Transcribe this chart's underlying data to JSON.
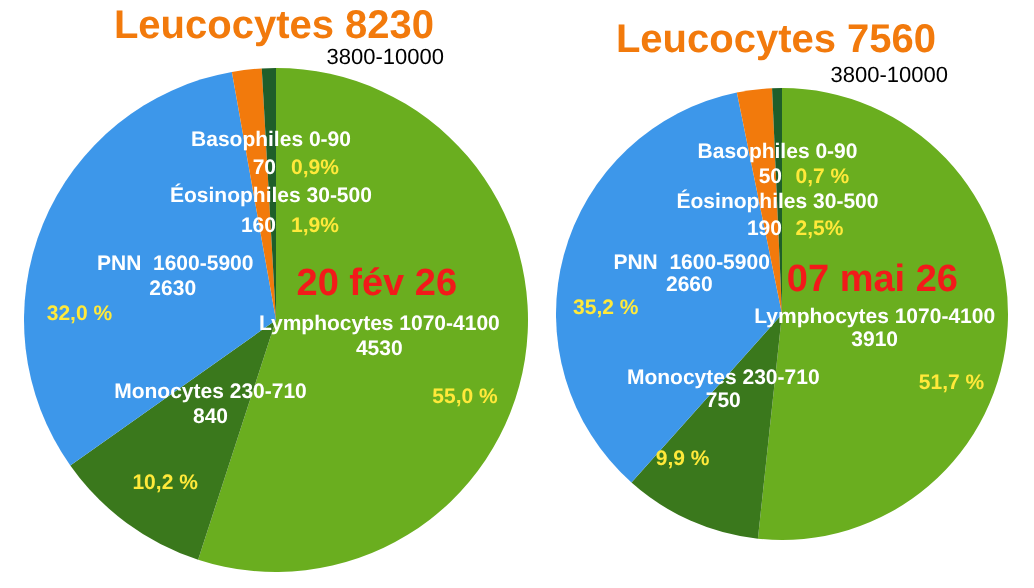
{
  "chart_data": [
    {
      "type": "pie",
      "title": "Leucocytes 8230",
      "subtitle": "3800-10000",
      "annotations": [
        "20 fév 26",
        "4530",
        "840",
        "2630",
        "160",
        "70"
      ],
      "categories": [
        "Lymphocytes 1070-4100",
        "Monocytes 230-710",
        "PNN  1600-5900",
        "Éosinophiles 30-500",
        "Basophiles 0-90"
      ],
      "values": [
        55.0,
        10.2,
        32.0,
        1.9,
        0.9
      ],
      "value_labels": [
        "55,0 %",
        "10,2 %",
        "32,0 %",
        "1,9%",
        "0,9%"
      ],
      "colors": [
        "#6aae1f",
        "#3a781c",
        "#3d97ea",
        "#f27a0c",
        "#1f5e2a"
      ]
    },
    {
      "type": "pie",
      "title": "Leucocytes 7560",
      "subtitle": "3800-10000",
      "annotations": [
        "07 mai 26",
        "3910",
        "750",
        "2660",
        "190",
        "50"
      ],
      "categories": [
        "Lymphocytes 1070-4100",
        "Monocytes 230-710",
        "PNN  1600-5900",
        "Éosinophiles 30-500",
        "Basophiles 0-90"
      ],
      "values": [
        51.7,
        9.9,
        35.2,
        2.5,
        0.7
      ],
      "value_labels": [
        "51,7 %",
        "9,9 %",
        "35,2 %",
        "2,5%",
        "0,7 %"
      ],
      "colors": [
        "#6aae1f",
        "#3a781c",
        "#3d97ea",
        "#f27a0c",
        "#1f5e2a"
      ]
    }
  ]
}
